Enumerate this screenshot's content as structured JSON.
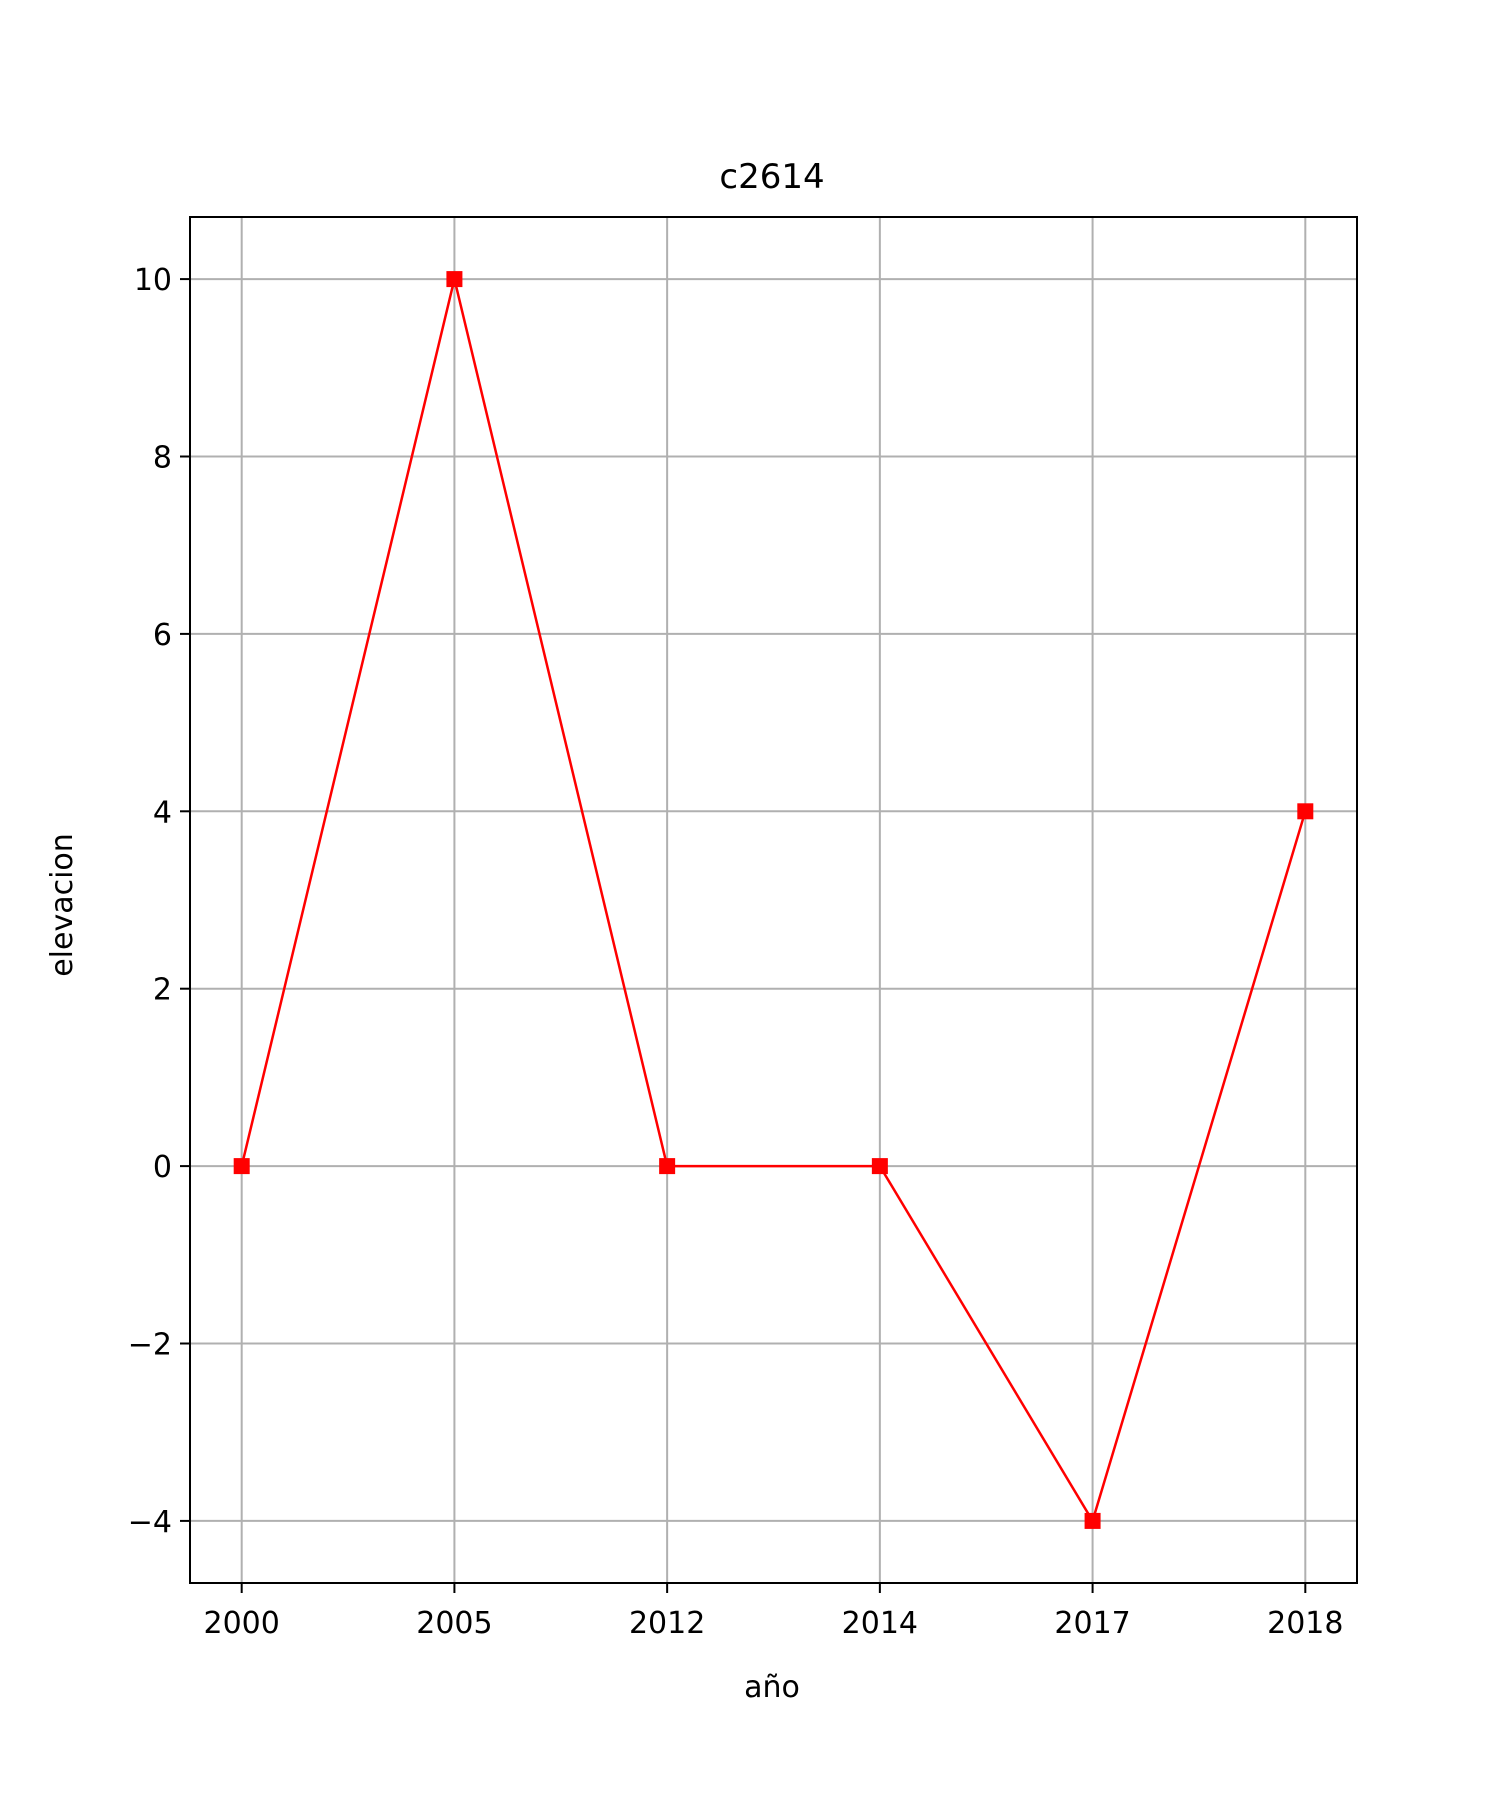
{
  "chart_data": {
    "type": "line",
    "title": "c2614",
    "xlabel": "año",
    "ylabel": "elevacion",
    "categories": [
      "2000",
      "2005",
      "2012",
      "2014",
      "2017",
      "2018"
    ],
    "series": [
      {
        "values": [
          0,
          10,
          0,
          0,
          -4,
          4
        ],
        "color": "#ff0000",
        "marker": "square"
      }
    ],
    "ylim": [
      -4.7,
      10.7
    ],
    "yticks": [
      -4,
      -2,
      0,
      2,
      4,
      6,
      8,
      10
    ],
    "ytick_labels": [
      "−4",
      "−2",
      "0",
      "2",
      "4",
      "6",
      "8",
      "10"
    ],
    "grid": true,
    "grid_color": "#b0b0b0",
    "legend": "none"
  }
}
